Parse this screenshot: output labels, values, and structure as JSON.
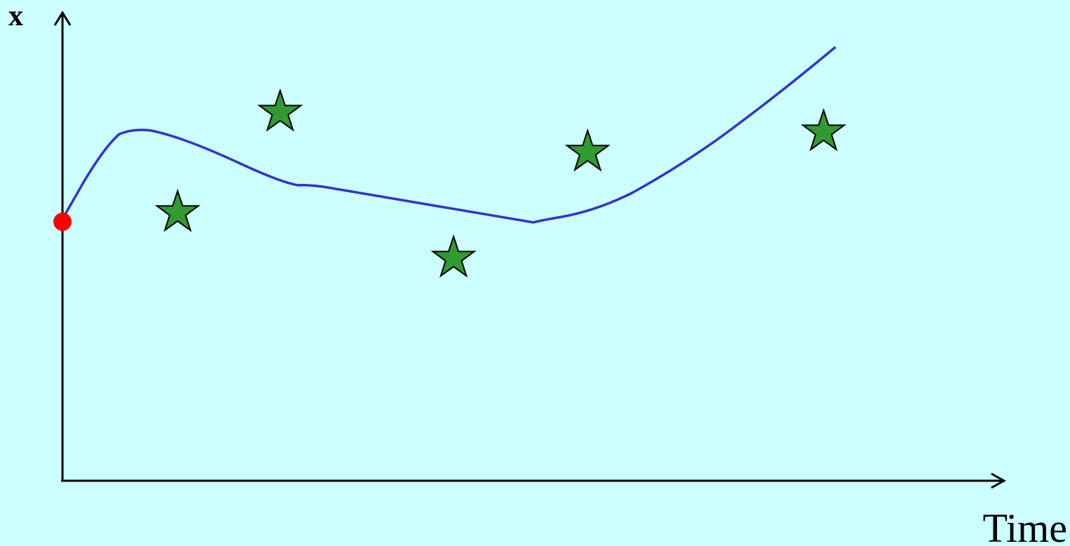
{
  "axes": {
    "y_label": "x",
    "x_label": "Time"
  }
}
